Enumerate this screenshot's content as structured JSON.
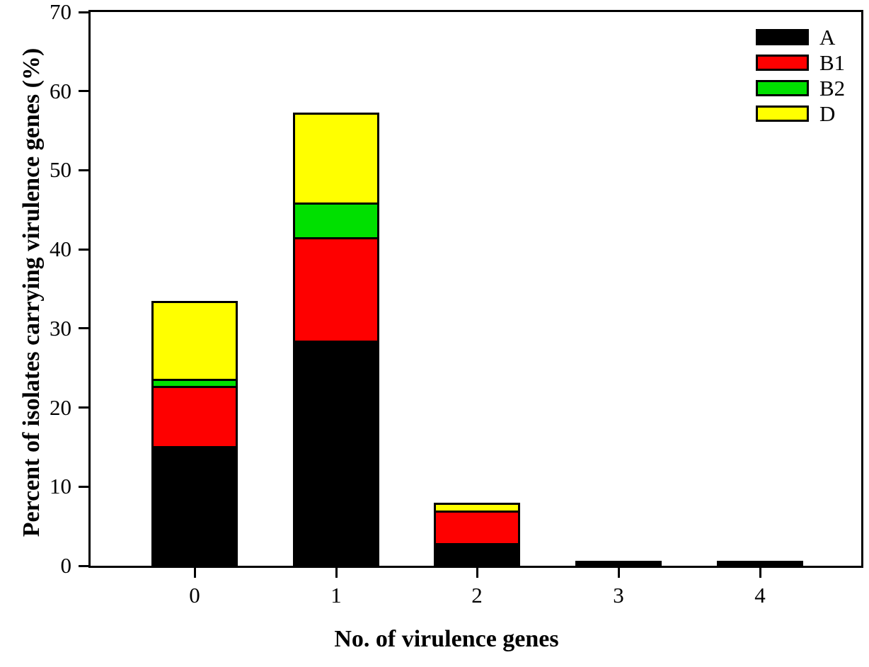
{
  "chart_data": {
    "type": "bar",
    "stacked": true,
    "title": "",
    "xlabel": "No. of virulence genes",
    "ylabel": "Percent of isolates carrying virulence genes (%)",
    "categories": [
      "0",
      "1",
      "2",
      "3",
      "4"
    ],
    "series": [
      {
        "name": "A",
        "color": "#000000",
        "values": [
          15.1,
          28.5,
          2.9,
          0.6,
          0.6
        ]
      },
      {
        "name": "B1",
        "color": "#fe0000",
        "values": [
          7.6,
          13.0,
          4.1,
          0,
          0
        ]
      },
      {
        "name": "B2",
        "color": "#00e000",
        "values": [
          0.9,
          4.4,
          0,
          0,
          0
        ]
      },
      {
        "name": "D",
        "color": "#ffff00",
        "values": [
          9.9,
          11.4,
          1.0,
          0,
          0
        ]
      }
    ],
    "ylim": [
      0,
      70
    ],
    "ytick_step": 10,
    "yticks": [
      "0",
      "10",
      "20",
      "30",
      "40",
      "50",
      "60",
      "70"
    ],
    "grid": false,
    "legend_position": "top-right",
    "bar_border_color": "#000000",
    "axis_color": "#000000",
    "background": "#ffffff"
  }
}
